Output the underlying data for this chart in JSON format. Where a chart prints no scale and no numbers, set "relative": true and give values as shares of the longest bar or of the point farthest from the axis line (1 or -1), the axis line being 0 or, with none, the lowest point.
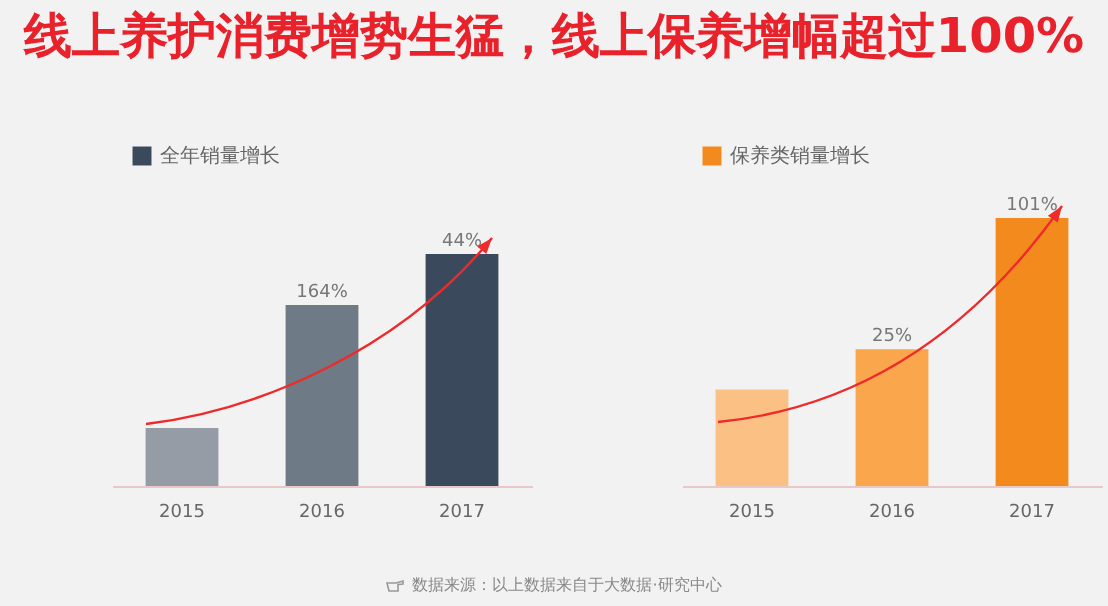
{
  "chart_data": [
    {
      "type": "bar",
      "title": "线上养护消费增势生猛，线上保养增幅超过100%",
      "relative": true,
      "categories": [
        "2015",
        "2016",
        "2017"
      ],
      "legend": "top left",
      "annotations": [
        {
          "text": "164%",
          "x": "2016",
          "y": 0.78
        },
        {
          "text": "44%",
          "x": "2017",
          "y": 1
        }
      ],
      "series": [
        {
          "name": "全年销量增长",
          "color": "#3a4a5c",
          "colors": [
            "#959ca6",
            "#6e7a86",
            "#3a4a5c"
          ],
          "values": [
            0.25,
            0.78,
            1
          ]
        }
      ]
    },
    {
      "type": "bar",
      "relative": true,
      "categories": [
        "2015",
        "2016",
        "2017"
      ],
      "legend": "top left",
      "annotations": [
        {
          "text": "25%",
          "x": "2016",
          "y": 0.51
        },
        {
          "text": "101%",
          "x": "2017",
          "y": 1
        },
        "数据来源：以上数据来自于大数据·研究中心"
      ],
      "series": [
        {
          "name": "保养类销量增长",
          "color": "#f28a1e",
          "colors": [
            "#fbc184",
            "#f9a64c",
            "#f28a1e"
          ],
          "values": [
            0.36,
            0.51,
            1
          ]
        }
      ]
    }
  ]
}
